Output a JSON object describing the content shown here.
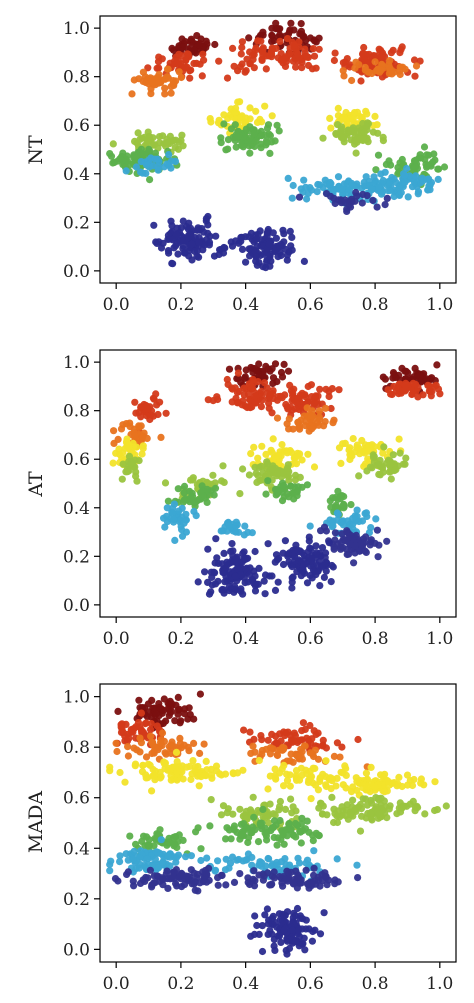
{
  "chart_data": [
    {
      "type": "scatter",
      "ylabel": "NT",
      "xlim": [
        -0.05,
        1.05
      ],
      "ylim": [
        -0.05,
        1.05
      ],
      "xticks": [
        "0.0",
        "0.2",
        "0.4",
        "0.6",
        "0.8",
        "1.0"
      ],
      "yticks": [
        "0.0",
        "0.2",
        "0.4",
        "0.6",
        "0.8",
        "1.0"
      ],
      "clusters": [
        {
          "color": "#7b1010",
          "x": 0.23,
          "y": 0.92,
          "sx": 0.04,
          "sy": 0.02,
          "n": 45
        },
        {
          "color": "#d43a1a",
          "x": 0.2,
          "y": 0.86,
          "sx": 0.05,
          "sy": 0.025,
          "n": 45
        },
        {
          "color": "#e8731f",
          "x": 0.14,
          "y": 0.78,
          "sx": 0.035,
          "sy": 0.025,
          "n": 45
        },
        {
          "color": "#7b1010",
          "x": 0.52,
          "y": 0.96,
          "sx": 0.05,
          "sy": 0.025,
          "n": 55
        },
        {
          "color": "#d43a1a",
          "x": 0.5,
          "y": 0.88,
          "sx": 0.08,
          "sy": 0.03,
          "n": 90
        },
        {
          "color": "#d43a1a",
          "x": 0.81,
          "y": 0.86,
          "sx": 0.06,
          "sy": 0.03,
          "n": 80
        },
        {
          "color": "#e8731f",
          "x": 0.82,
          "y": 0.83,
          "sx": 0.05,
          "sy": 0.02,
          "n": 35
        },
        {
          "color": "#f2e32a",
          "x": 0.38,
          "y": 0.63,
          "sx": 0.04,
          "sy": 0.03,
          "n": 45
        },
        {
          "color": "#5cb04c",
          "x": 0.41,
          "y": 0.55,
          "sx": 0.04,
          "sy": 0.03,
          "n": 70
        },
        {
          "color": "#f2e32a",
          "x": 0.73,
          "y": 0.62,
          "sx": 0.04,
          "sy": 0.025,
          "n": 45
        },
        {
          "color": "#9ac43f",
          "x": 0.74,
          "y": 0.56,
          "sx": 0.04,
          "sy": 0.025,
          "n": 55
        },
        {
          "color": "#9ac43f",
          "x": 0.12,
          "y": 0.53,
          "sx": 0.05,
          "sy": 0.02,
          "n": 45
        },
        {
          "color": "#5cb04c",
          "x": 0.09,
          "y": 0.46,
          "sx": 0.05,
          "sy": 0.025,
          "n": 80
        },
        {
          "color": "#3ba7d3",
          "x": 0.12,
          "y": 0.44,
          "sx": 0.04,
          "sy": 0.02,
          "n": 25
        },
        {
          "color": "#5cb04c",
          "x": 0.93,
          "y": 0.43,
          "sx": 0.04,
          "sy": 0.03,
          "n": 55
        },
        {
          "color": "#3ba7d3",
          "x": 0.73,
          "y": 0.34,
          "sx": 0.08,
          "sy": 0.025,
          "n": 90
        },
        {
          "color": "#3ba7d3",
          "x": 0.9,
          "y": 0.36,
          "sx": 0.05,
          "sy": 0.025,
          "n": 55
        },
        {
          "color": "#33338f",
          "x": 0.73,
          "y": 0.29,
          "sx": 0.06,
          "sy": 0.015,
          "n": 30
        },
        {
          "color": "#2b2c8f",
          "x": 0.23,
          "y": 0.12,
          "sx": 0.05,
          "sy": 0.04,
          "n": 110
        },
        {
          "color": "#2b2c8f",
          "x": 0.46,
          "y": 0.1,
          "sx": 0.05,
          "sy": 0.04,
          "n": 100
        }
      ]
    },
    {
      "type": "scatter",
      "ylabel": "AT",
      "xlim": [
        -0.05,
        1.05
      ],
      "ylim": [
        -0.05,
        1.05
      ],
      "xticks": [
        "0.0",
        "0.2",
        "0.4",
        "0.6",
        "0.8",
        "1.0"
      ],
      "yticks": [
        "0.0",
        "0.2",
        "0.4",
        "0.6",
        "0.8",
        "1.0"
      ],
      "clusters": [
        {
          "color": "#7b1010",
          "x": 0.44,
          "y": 0.95,
          "sx": 0.04,
          "sy": 0.025,
          "n": 45
        },
        {
          "color": "#d43a1a",
          "x": 0.43,
          "y": 0.86,
          "sx": 0.05,
          "sy": 0.03,
          "n": 75
        },
        {
          "color": "#d43a1a",
          "x": 0.59,
          "y": 0.84,
          "sx": 0.04,
          "sy": 0.035,
          "n": 55
        },
        {
          "color": "#e8731f",
          "x": 0.6,
          "y": 0.76,
          "sx": 0.04,
          "sy": 0.025,
          "n": 40
        },
        {
          "color": "#7b1010",
          "x": 0.9,
          "y": 0.94,
          "sx": 0.045,
          "sy": 0.02,
          "n": 50
        },
        {
          "color": "#d43a1a",
          "x": 0.91,
          "y": 0.89,
          "sx": 0.045,
          "sy": 0.02,
          "n": 40
        },
        {
          "color": "#d43a1a",
          "x": 0.1,
          "y": 0.8,
          "sx": 0.025,
          "sy": 0.03,
          "n": 30
        },
        {
          "color": "#e8731f",
          "x": 0.06,
          "y": 0.7,
          "sx": 0.025,
          "sy": 0.03,
          "n": 30
        },
        {
          "color": "#f2e32a",
          "x": 0.04,
          "y": 0.63,
          "sx": 0.02,
          "sy": 0.03,
          "n": 35
        },
        {
          "color": "#9ac43f",
          "x": 0.05,
          "y": 0.56,
          "sx": 0.015,
          "sy": 0.02,
          "n": 20
        },
        {
          "color": "#f2e32a",
          "x": 0.51,
          "y": 0.61,
          "sx": 0.05,
          "sy": 0.03,
          "n": 50
        },
        {
          "color": "#9ac43f",
          "x": 0.49,
          "y": 0.54,
          "sx": 0.04,
          "sy": 0.03,
          "n": 50
        },
        {
          "color": "#5cb04c",
          "x": 0.53,
          "y": 0.47,
          "sx": 0.03,
          "sy": 0.02,
          "n": 30
        },
        {
          "color": "#f2e32a",
          "x": 0.77,
          "y": 0.63,
          "sx": 0.04,
          "sy": 0.03,
          "n": 45
        },
        {
          "color": "#9ac43f",
          "x": 0.83,
          "y": 0.57,
          "sx": 0.035,
          "sy": 0.025,
          "n": 40
        },
        {
          "color": "#9ac43f",
          "x": 0.27,
          "y": 0.5,
          "sx": 0.035,
          "sy": 0.03,
          "n": 35
        },
        {
          "color": "#5cb04c",
          "x": 0.24,
          "y": 0.45,
          "sx": 0.035,
          "sy": 0.025,
          "n": 35
        },
        {
          "color": "#3ba7d3",
          "x": 0.19,
          "y": 0.35,
          "sx": 0.025,
          "sy": 0.03,
          "n": 35
        },
        {
          "color": "#5cb04c",
          "x": 0.69,
          "y": 0.41,
          "sx": 0.02,
          "sy": 0.025,
          "n": 25
        },
        {
          "color": "#3ba7d3",
          "x": 0.72,
          "y": 0.34,
          "sx": 0.035,
          "sy": 0.025,
          "n": 40
        },
        {
          "color": "#33338f",
          "x": 0.73,
          "y": 0.25,
          "sx": 0.04,
          "sy": 0.03,
          "n": 70
        },
        {
          "color": "#2b2c8f",
          "x": 0.36,
          "y": 0.13,
          "sx": 0.04,
          "sy": 0.05,
          "n": 110
        },
        {
          "color": "#2b2c8f",
          "x": 0.58,
          "y": 0.17,
          "sx": 0.045,
          "sy": 0.05,
          "n": 100
        },
        {
          "color": "#3ba7d3",
          "x": 0.36,
          "y": 0.32,
          "sx": 0.03,
          "sy": 0.02,
          "n": 20
        }
      ]
    },
    {
      "type": "scatter",
      "ylabel": "MADA",
      "xlim": [
        -0.05,
        1.05
      ],
      "ylim": [
        -0.05,
        1.05
      ],
      "xticks": [
        "0.0",
        "0.2",
        "0.4",
        "0.6",
        "0.8",
        "1.0"
      ],
      "yticks": [
        "0.0",
        "0.2",
        "0.4",
        "0.6",
        "0.8",
        "1.0"
      ],
      "clusters": [
        {
          "color": "#7b1010",
          "x": 0.14,
          "y": 0.94,
          "sx": 0.05,
          "sy": 0.03,
          "n": 70
        },
        {
          "color": "#d43a1a",
          "x": 0.08,
          "y": 0.86,
          "sx": 0.05,
          "sy": 0.025,
          "n": 45
        },
        {
          "color": "#e8731f",
          "x": 0.13,
          "y": 0.8,
          "sx": 0.06,
          "sy": 0.025,
          "n": 50
        },
        {
          "color": "#d43a1a",
          "x": 0.55,
          "y": 0.83,
          "sx": 0.07,
          "sy": 0.025,
          "n": 60
        },
        {
          "color": "#e8731f",
          "x": 0.55,
          "y": 0.77,
          "sx": 0.07,
          "sy": 0.02,
          "n": 45
        },
        {
          "color": "#f2e32a",
          "x": 0.2,
          "y": 0.7,
          "sx": 0.09,
          "sy": 0.025,
          "n": 90
        },
        {
          "color": "#f2e32a",
          "x": 0.6,
          "y": 0.68,
          "sx": 0.08,
          "sy": 0.025,
          "n": 55
        },
        {
          "color": "#f2e32a",
          "x": 0.8,
          "y": 0.65,
          "sx": 0.07,
          "sy": 0.025,
          "n": 70
        },
        {
          "color": "#9ac43f",
          "x": 0.45,
          "y": 0.54,
          "sx": 0.07,
          "sy": 0.03,
          "n": 60
        },
        {
          "color": "#9ac43f",
          "x": 0.8,
          "y": 0.55,
          "sx": 0.08,
          "sy": 0.025,
          "n": 90
        },
        {
          "color": "#5cb04c",
          "x": 0.48,
          "y": 0.47,
          "sx": 0.1,
          "sy": 0.025,
          "n": 90
        },
        {
          "color": "#5cb04c",
          "x": 0.13,
          "y": 0.42,
          "sx": 0.05,
          "sy": 0.025,
          "n": 40
        },
        {
          "color": "#3ba7d3",
          "x": 0.1,
          "y": 0.35,
          "sx": 0.06,
          "sy": 0.025,
          "n": 80
        },
        {
          "color": "#3ba7d3",
          "x": 0.48,
          "y": 0.33,
          "sx": 0.1,
          "sy": 0.025,
          "n": 70
        },
        {
          "color": "#33338f",
          "x": 0.18,
          "y": 0.28,
          "sx": 0.08,
          "sy": 0.02,
          "n": 80
        },
        {
          "color": "#33338f",
          "x": 0.55,
          "y": 0.28,
          "sx": 0.1,
          "sy": 0.02,
          "n": 80
        },
        {
          "color": "#2b2c8f",
          "x": 0.52,
          "y": 0.08,
          "sx": 0.04,
          "sy": 0.04,
          "n": 110
        }
      ]
    }
  ]
}
